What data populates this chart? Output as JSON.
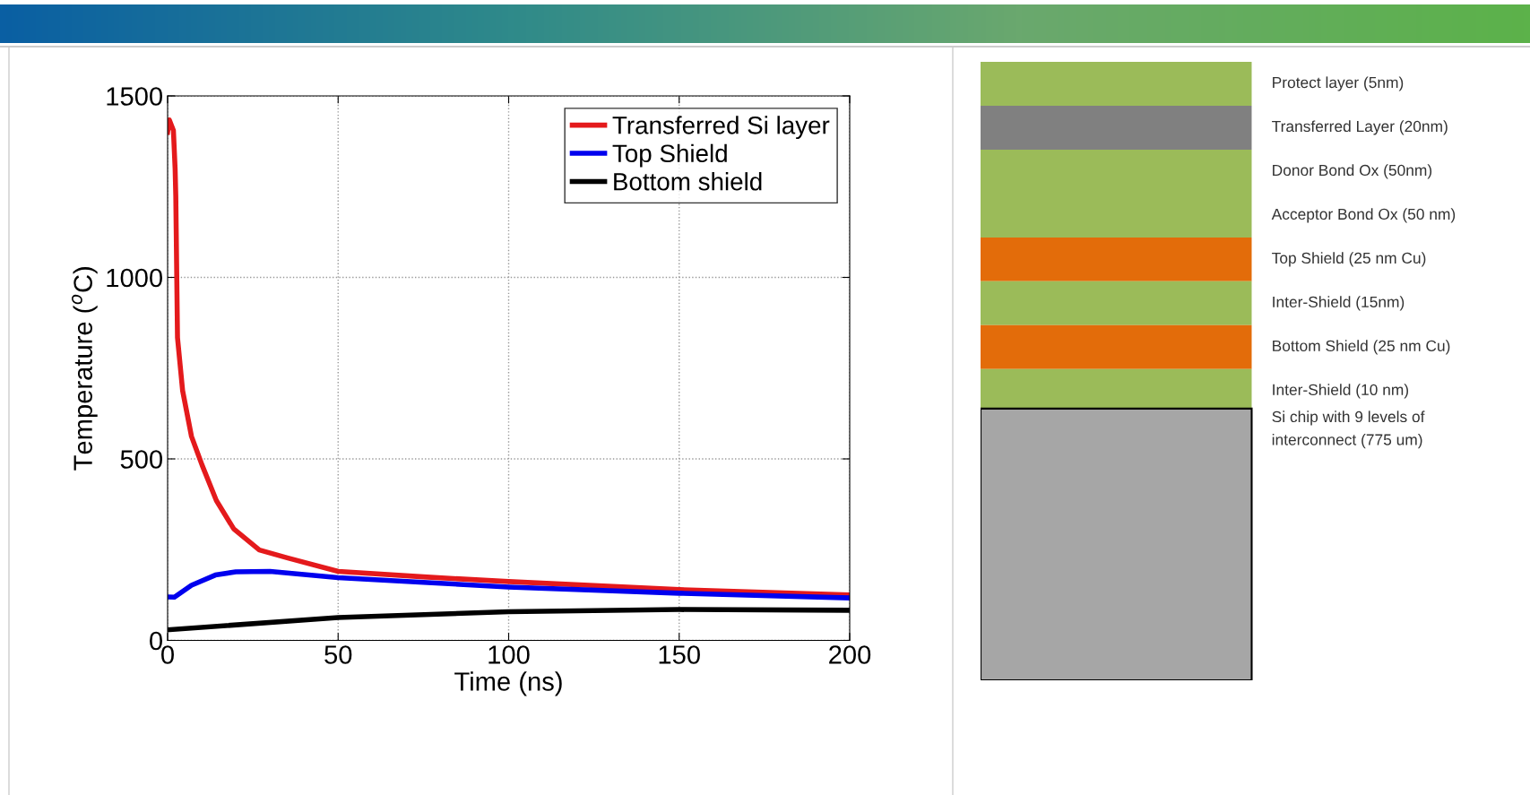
{
  "chart_data": [
    {
      "type": "line",
      "xlabel": "Time (ns)",
      "ylabel": "Temperature ($^{o}$C)",
      "xlim": [
        0,
        200
      ],
      "xticks": [
        0,
        50,
        100,
        150,
        200
      ],
      "ylim": [
        0,
        1500
      ],
      "yticks": [
        0,
        500,
        1000,
        1500
      ],
      "grid": true,
      "legend": "top right",
      "line_style": "solid",
      "marker": "none",
      "series": [
        {
          "name": "Transferred Si layer",
          "color": "#e41a1c",
          "x": [
            0,
            0.5,
            1.7,
            2.2,
            2.4,
            2.9,
            4.4,
            7.0,
            10.1,
            14.3,
            19.4,
            26.9,
            35.3,
            50,
            75,
            100,
            150,
            200
          ],
          "values": [
            1400,
            1434,
            1405,
            1300,
            1224,
            834,
            688,
            562,
            483,
            385,
            307,
            249,
            227,
            190,
            175,
            162,
            140,
            125
          ]
        },
        {
          "name": "Top Shield",
          "color": "#0000ee",
          "x": [
            0,
            2,
            7,
            14,
            20,
            30,
            50,
            75,
            100,
            150,
            200
          ],
          "values": [
            120,
            119,
            152,
            180,
            189,
            190,
            173,
            160,
            147,
            130,
            117
          ]
        },
        {
          "name": "Bottom shield",
          "color": "#000000",
          "x": [
            0,
            50,
            100,
            150,
            200
          ],
          "values": [
            29,
            63,
            79,
            85,
            83
          ]
        }
      ]
    },
    {
      "type": "other",
      "annotations": [
        "Protect layer (5nm)",
        "Transferred Layer (20nm)",
        "Donor Bond Ox (50nm)",
        "Acceptor Bond Ox (50 nm)",
        "Top Shield (25 nm Cu)",
        "Inter-Shield (15nm)",
        "Bottom Shield (25 nm Cu)",
        "Inter-Shield (10 nm)",
        "Si chip with 9 levels of\ninterconnect (775 um)"
      ]
    }
  ]
}
